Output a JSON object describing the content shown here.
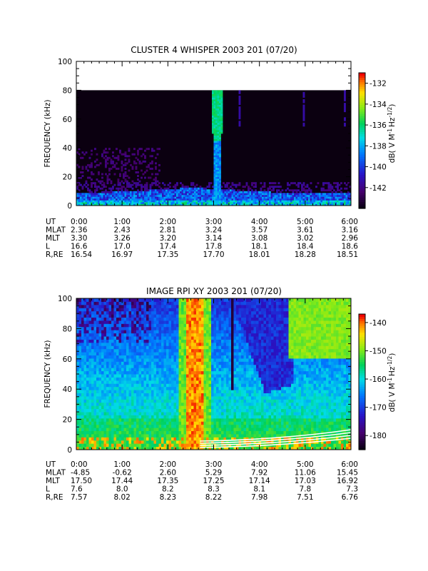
{
  "chart_data": [
    {
      "type": "heatmap",
      "title": "CLUSTER 4 WHISPER 2003 201 (07/20)",
      "ylabel": "FREQUENCY (kHz)",
      "ylim": [
        0,
        100
      ],
      "yticks": [
        "0",
        "20",
        "40",
        "60",
        "80",
        "100"
      ],
      "data_ylim": [
        0,
        80
      ],
      "colorbar": {
        "label": "dB( V M⁻¹ Hz⁻¹ᐟ² )",
        "label_main": "dB( V M",
        "label_sup1": "-1",
        "label_mid": "Hz",
        "label_sup2": "-1/2",
        "label_end": ")",
        "range": [
          -144,
          -131
        ],
        "ticks": [
          "-132",
          "-134",
          "-136",
          "-138",
          "-140",
          "-142"
        ]
      },
      "features": [
        {
          "type": "band",
          "t_start": 0.0,
          "t_end": 6.0,
          "f_low": 0,
          "f_high": 10,
          "intensity": -139
        },
        {
          "type": "burst",
          "t_center": 3.05,
          "width_hr": 0.12,
          "f_low": 0,
          "f_high": 80,
          "intensity": -134
        }
      ],
      "ephemeris": {
        "labels": [
          "UT",
          "MLAT",
          "MLT",
          "L",
          "R,RE"
        ],
        "columns": [
          {
            "UT": "0:00",
            "MLAT": "2.36",
            "MLT": "3.30",
            "L": "16.6",
            "RE": "16.54"
          },
          {
            "UT": "1:00",
            "MLAT": "2.43",
            "MLT": "3.26",
            "L": "17.0",
            "RE": "16.97"
          },
          {
            "UT": "2:00",
            "MLAT": "2.81",
            "MLT": "3.20",
            "L": "17.4",
            "RE": "17.35"
          },
          {
            "UT": "3:00",
            "MLAT": "3.24",
            "MLT": "3.14",
            "L": "17.8",
            "RE": "17.70"
          },
          {
            "UT": "4:00",
            "MLAT": "3.57",
            "MLT": "3.08",
            "L": "18.1",
            "RE": "18.01"
          },
          {
            "UT": "5:00",
            "MLAT": "3.61",
            "MLT": "3.02",
            "L": "18.4",
            "RE": "18.28"
          },
          {
            "UT": "6:00",
            "MLAT": "3.16",
            "MLT": "2.96",
            "L": "18.6",
            "RE": "18.51"
          }
        ]
      }
    },
    {
      "type": "heatmap",
      "title": "IMAGE RPI XY 2003 201 (07/20)",
      "ylabel": "FREQUENCY (kHz)",
      "ylim": [
        0,
        100
      ],
      "yticks": [
        "0",
        "20",
        "40",
        "60",
        "80",
        "100"
      ],
      "data_ylim": [
        0,
        100
      ],
      "colorbar": {
        "label": "dB( V M⁻¹ Hz⁻¹ᐟ² )",
        "label_main": "dB( V M",
        "label_sup1": "-1",
        "label_mid": "Hz",
        "label_sup2": "-1/2",
        "label_end": ")",
        "range": [
          -185,
          -137
        ],
        "ticks": [
          "-140",
          "-150",
          "-160",
          "-170",
          "-180"
        ]
      },
      "features": [
        {
          "type": "burst",
          "t_center": 2.55,
          "width_hr": 0.35,
          "f_low": 0,
          "f_high": 100,
          "intensity": -140
        },
        {
          "type": "depletion",
          "t_start": 3.4,
          "t_end": 4.6,
          "intensity": -178
        }
      ],
      "ephemeris": {
        "labels": [
          "UT",
          "MLAT",
          "MLT",
          "L",
          "R,RE"
        ],
        "columns": [
          {
            "UT": "0:00",
            "MLAT": "-4.85",
            "MLT": "17.50",
            "L": "7.6",
            "RE": "7.57"
          },
          {
            "UT": "1:00",
            "MLAT": "-0.62",
            "MLT": "17.44",
            "L": "8.0",
            "RE": "8.02"
          },
          {
            "UT": "2:00",
            "MLAT": "2.60",
            "MLT": "17.35",
            "L": "8.2",
            "RE": "8.23"
          },
          {
            "UT": "3:00",
            "MLAT": "5.29",
            "MLT": "17.25",
            "L": "8.3",
            "RE": "8.22"
          },
          {
            "UT": "4:00",
            "MLAT": "7.92",
            "MLT": "17.14",
            "L": "8.1",
            "RE": "7.98"
          },
          {
            "UT": "5:00",
            "MLAT": "11.06",
            "MLT": "17.03",
            "L": "7.8",
            "RE": "7.51"
          },
          {
            "UT": "6:00",
            "MLAT": "15.45",
            "MLT": "16.92",
            "L": "7.3",
            "RE": "6.76"
          }
        ]
      }
    }
  ]
}
